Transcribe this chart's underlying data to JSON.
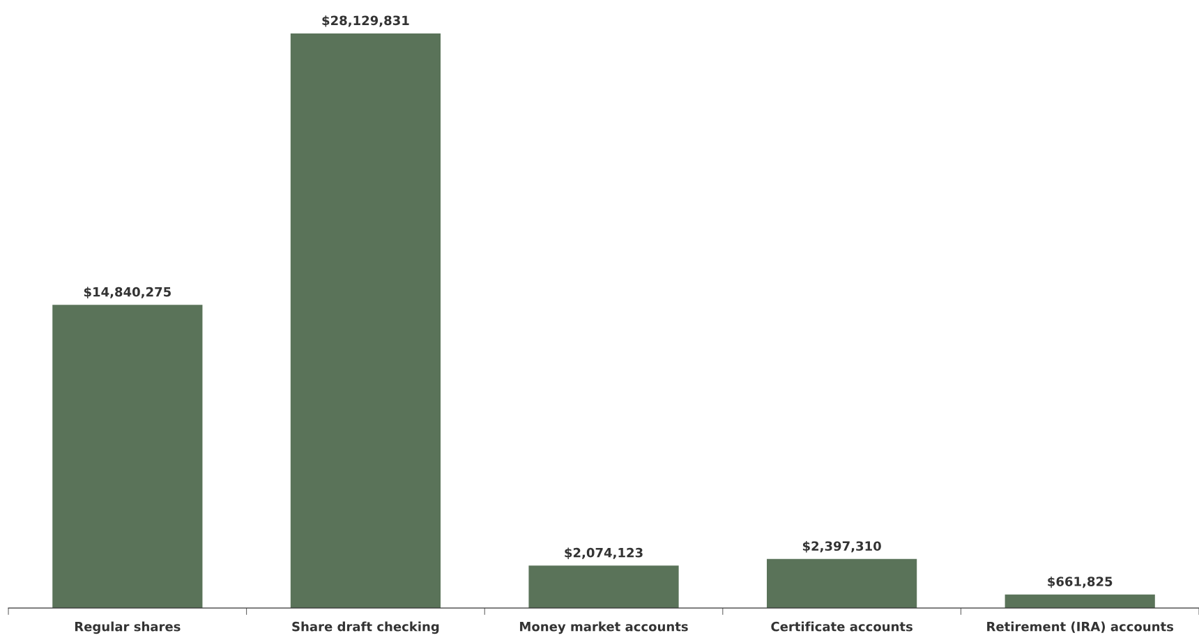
{
  "chart_data": {
    "type": "bar",
    "categories": [
      "Regular shares",
      "Share draft checking",
      "Money market accounts",
      "Certificate accounts",
      "Retirement (IRA) accounts"
    ],
    "values": [
      14840275,
      28129831,
      2074123,
      2397310,
      661825
    ],
    "color": "#5a7359",
    "value_labels": [
      "$14,840,275",
      "$28,129,831",
      "$2,074,123",
      "$2,397,310",
      "$661,825"
    ],
    "tick_labels": "x",
    "grid": false,
    "legend": false
  }
}
